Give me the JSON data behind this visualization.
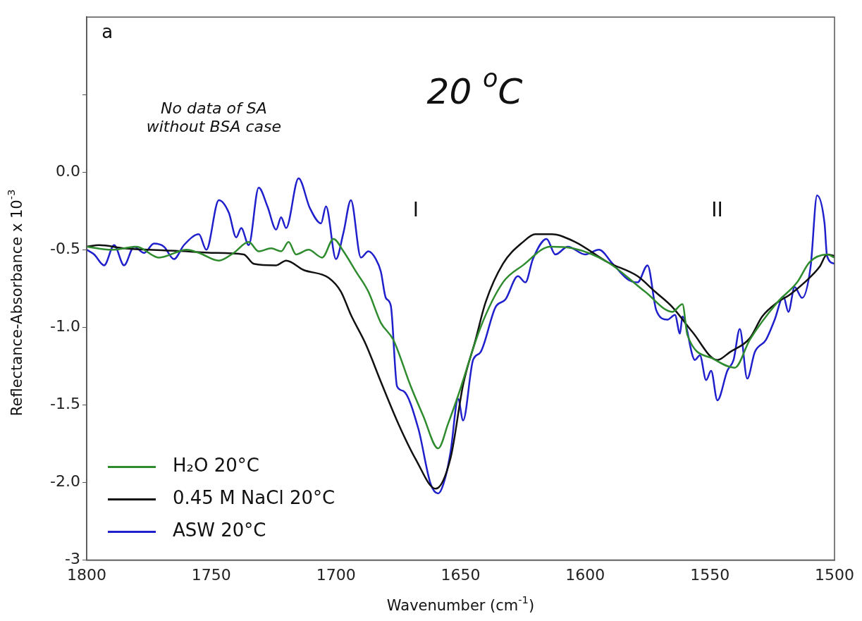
{
  "chart_data": {
    "type": "line",
    "title": "20 $^{o}$C",
    "xlabel": "Wavenumber (cm$^{-1}$)",
    "ylabel": "Reflectance-Absorbance x 10$^{-3}$",
    "xlim": [
      1800,
      1500
    ],
    "xticks": [
      1800,
      1750,
      1700,
      1650,
      1600,
      1550,
      1500
    ],
    "ylim": [
      -2.5,
      1.0
    ],
    "yticks": [
      {
        "value": -2.5,
        "label": "-3"
      },
      {
        "value": -2.0,
        "label": "-2.0"
      },
      {
        "value": -1.5,
        "label": "-1.5"
      },
      {
        "value": -1.0,
        "label": "-1.0"
      },
      {
        "value": -0.5,
        "label": "-0.5"
      },
      {
        "value": 0.0,
        "label": "0.0"
      },
      {
        "value": 0.5,
        "label": null
      }
    ],
    "grid": false,
    "legend": "bottom left",
    "marker": "none",
    "line_style": "solid",
    "annotations": [
      "a",
      "No data of SA\nwithout BSA case",
      "I",
      "II"
    ],
    "series": [
      {
        "name": "H₂O 20°C",
        "color": "#2e8b2e",
        "x": [
          1800,
          1790,
          1780,
          1771,
          1760,
          1755,
          1747,
          1741,
          1735,
          1731,
          1726,
          1722,
          1719,
          1716,
          1711,
          1705.5,
          1701,
          1697,
          1692,
          1687,
          1682,
          1677,
          1670,
          1665,
          1659,
          1655,
          1651,
          1642,
          1633,
          1625,
          1614,
          1605,
          1591,
          1576,
          1565,
          1561,
          1559,
          1549,
          1540,
          1534,
          1523,
          1515,
          1510,
          1503,
          1500
        ],
        "values": [
          -0.48,
          -0.5,
          -0.48,
          -0.55,
          -0.5,
          -0.52,
          -0.57,
          -0.52,
          -0.45,
          -0.51,
          -0.49,
          -0.51,
          -0.45,
          -0.53,
          -0.5,
          -0.55,
          -0.43,
          -0.51,
          -0.64,
          -0.77,
          -0.97,
          -1.08,
          -1.38,
          -1.57,
          -1.78,
          -1.62,
          -1.44,
          -1.0,
          -0.71,
          -0.6,
          -0.48,
          -0.49,
          -0.58,
          -0.77,
          -0.9,
          -0.85,
          -1.05,
          -1.2,
          -1.26,
          -1.08,
          -0.84,
          -0.71,
          -0.58,
          -0.53,
          -0.55
        ]
      },
      {
        "name": "0.45 M NaCl 20°C",
        "color": "#111111",
        "x": [
          1800,
          1795,
          1785,
          1775,
          1760,
          1750,
          1737,
          1733,
          1724,
          1720,
          1713,
          1703,
          1698,
          1694,
          1688,
          1682,
          1675,
          1668,
          1660,
          1654,
          1649,
          1644,
          1640,
          1633,
          1625,
          1620,
          1613.5,
          1604,
          1591,
          1579,
          1572,
          1565,
          1557,
          1547,
          1542,
          1534,
          1529,
          1523,
          1518,
          1512,
          1506,
          1503,
          1500
        ],
        "values": [
          -0.48,
          -0.47,
          -0.49,
          -0.5,
          -0.51,
          -0.52,
          -0.53,
          -0.59,
          -0.6,
          -0.57,
          -0.63,
          -0.68,
          -0.77,
          -0.92,
          -1.11,
          -1.35,
          -1.62,
          -1.85,
          -2.04,
          -1.84,
          -1.37,
          -1.08,
          -0.84,
          -0.59,
          -0.45,
          -0.4,
          -0.4,
          -0.45,
          -0.58,
          -0.67,
          -0.77,
          -0.87,
          -1.03,
          -1.21,
          -1.16,
          -1.07,
          -0.93,
          -0.84,
          -0.79,
          -0.71,
          -0.61,
          -0.53,
          -0.54
        ]
      },
      {
        "name": "ASW 20°C",
        "color": "#1f1fcc",
        "x": [
          1800,
          1797,
          1793,
          1789,
          1785,
          1781,
          1777,
          1773,
          1769,
          1765,
          1761,
          1755,
          1752,
          1747,
          1743,
          1740,
          1738,
          1735,
          1731,
          1727.5,
          1724,
          1722,
          1720,
          1715,
          1710.5,
          1706,
          1704,
          1700,
          1697,
          1694,
          1690,
          1687,
          1684,
          1682,
          1680,
          1678,
          1675.5,
          1673,
          1667,
          1662,
          1659,
          1656,
          1654,
          1651,
          1649,
          1645,
          1642,
          1636,
          1632,
          1627,
          1624,
          1621,
          1615.5,
          1612,
          1607,
          1600,
          1594.5,
          1589,
          1583,
          1579,
          1575,
          1571.5,
          1567,
          1564,
          1562,
          1561,
          1556,
          1554,
          1551.5,
          1549.5,
          1547,
          1543,
          1540.5,
          1538,
          1535,
          1532,
          1527.5,
          1524,
          1520.5,
          1518.5,
          1516,
          1513,
          1509.6,
          1507,
          1504,
          1503,
          1500
        ],
        "values": [
          -0.5,
          -0.53,
          -0.6,
          -0.47,
          -0.6,
          -0.48,
          -0.52,
          -0.46,
          -0.48,
          -0.56,
          -0.47,
          -0.4,
          -0.5,
          -0.18,
          -0.26,
          -0.42,
          -0.36,
          -0.47,
          -0.1,
          -0.22,
          -0.37,
          -0.29,
          -0.36,
          -0.04,
          -0.23,
          -0.33,
          -0.22,
          -0.56,
          -0.39,
          -0.18,
          -0.55,
          -0.51,
          -0.56,
          -0.64,
          -0.81,
          -0.86,
          -1.38,
          -1.41,
          -1.65,
          -2.01,
          -2.07,
          -1.96,
          -1.8,
          -1.46,
          -1.6,
          -1.21,
          -1.16,
          -0.87,
          -0.82,
          -0.67,
          -0.71,
          -0.56,
          -0.43,
          -0.53,
          -0.48,
          -0.53,
          -0.5,
          -0.59,
          -0.69,
          -0.71,
          -0.6,
          -0.89,
          -0.95,
          -0.92,
          -1.04,
          -0.93,
          -1.21,
          -1.18,
          -1.34,
          -1.28,
          -1.47,
          -1.28,
          -1.21,
          -1.01,
          -1.33,
          -1.16,
          -1.08,
          -0.95,
          -0.8,
          -0.9,
          -0.74,
          -0.81,
          -0.61,
          -0.15,
          -0.33,
          -0.54,
          -0.59
        ]
      }
    ]
  }
}
